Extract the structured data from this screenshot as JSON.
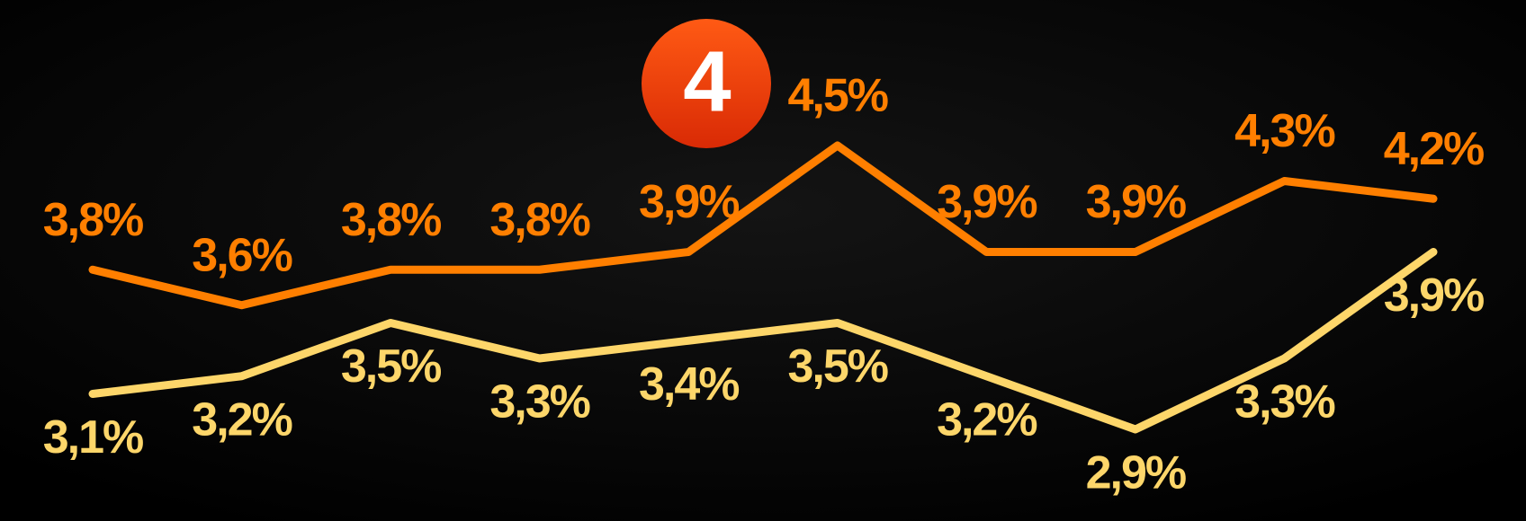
{
  "logo": "4",
  "chart_data": {
    "type": "line",
    "series": [
      {
        "color": "#ff7f00",
        "values": [
          3.8,
          3.6,
          3.8,
          3.8,
          3.9,
          4.5,
          3.9,
          3.9,
          4.3,
          4.2
        ],
        "value_labels": [
          "3,8%",
          "3,6%",
          "3,8%",
          "3,8%",
          "3,9%",
          "4,5%",
          "3,9%",
          "3,9%",
          "4,3%",
          "4,2%"
        ]
      },
      {
        "color": "#fdd66a",
        "values": [
          3.1,
          3.2,
          3.5,
          3.3,
          3.4,
          3.5,
          3.2,
          2.9,
          3.3,
          3.9
        ],
        "value_labels": [
          "3,1%",
          "3,2%",
          "3,5%",
          "3,3%",
          "3,4%",
          "3,5%",
          "3,2%",
          "2,9%",
          "3,3%",
          "3,9%"
        ]
      }
    ]
  }
}
